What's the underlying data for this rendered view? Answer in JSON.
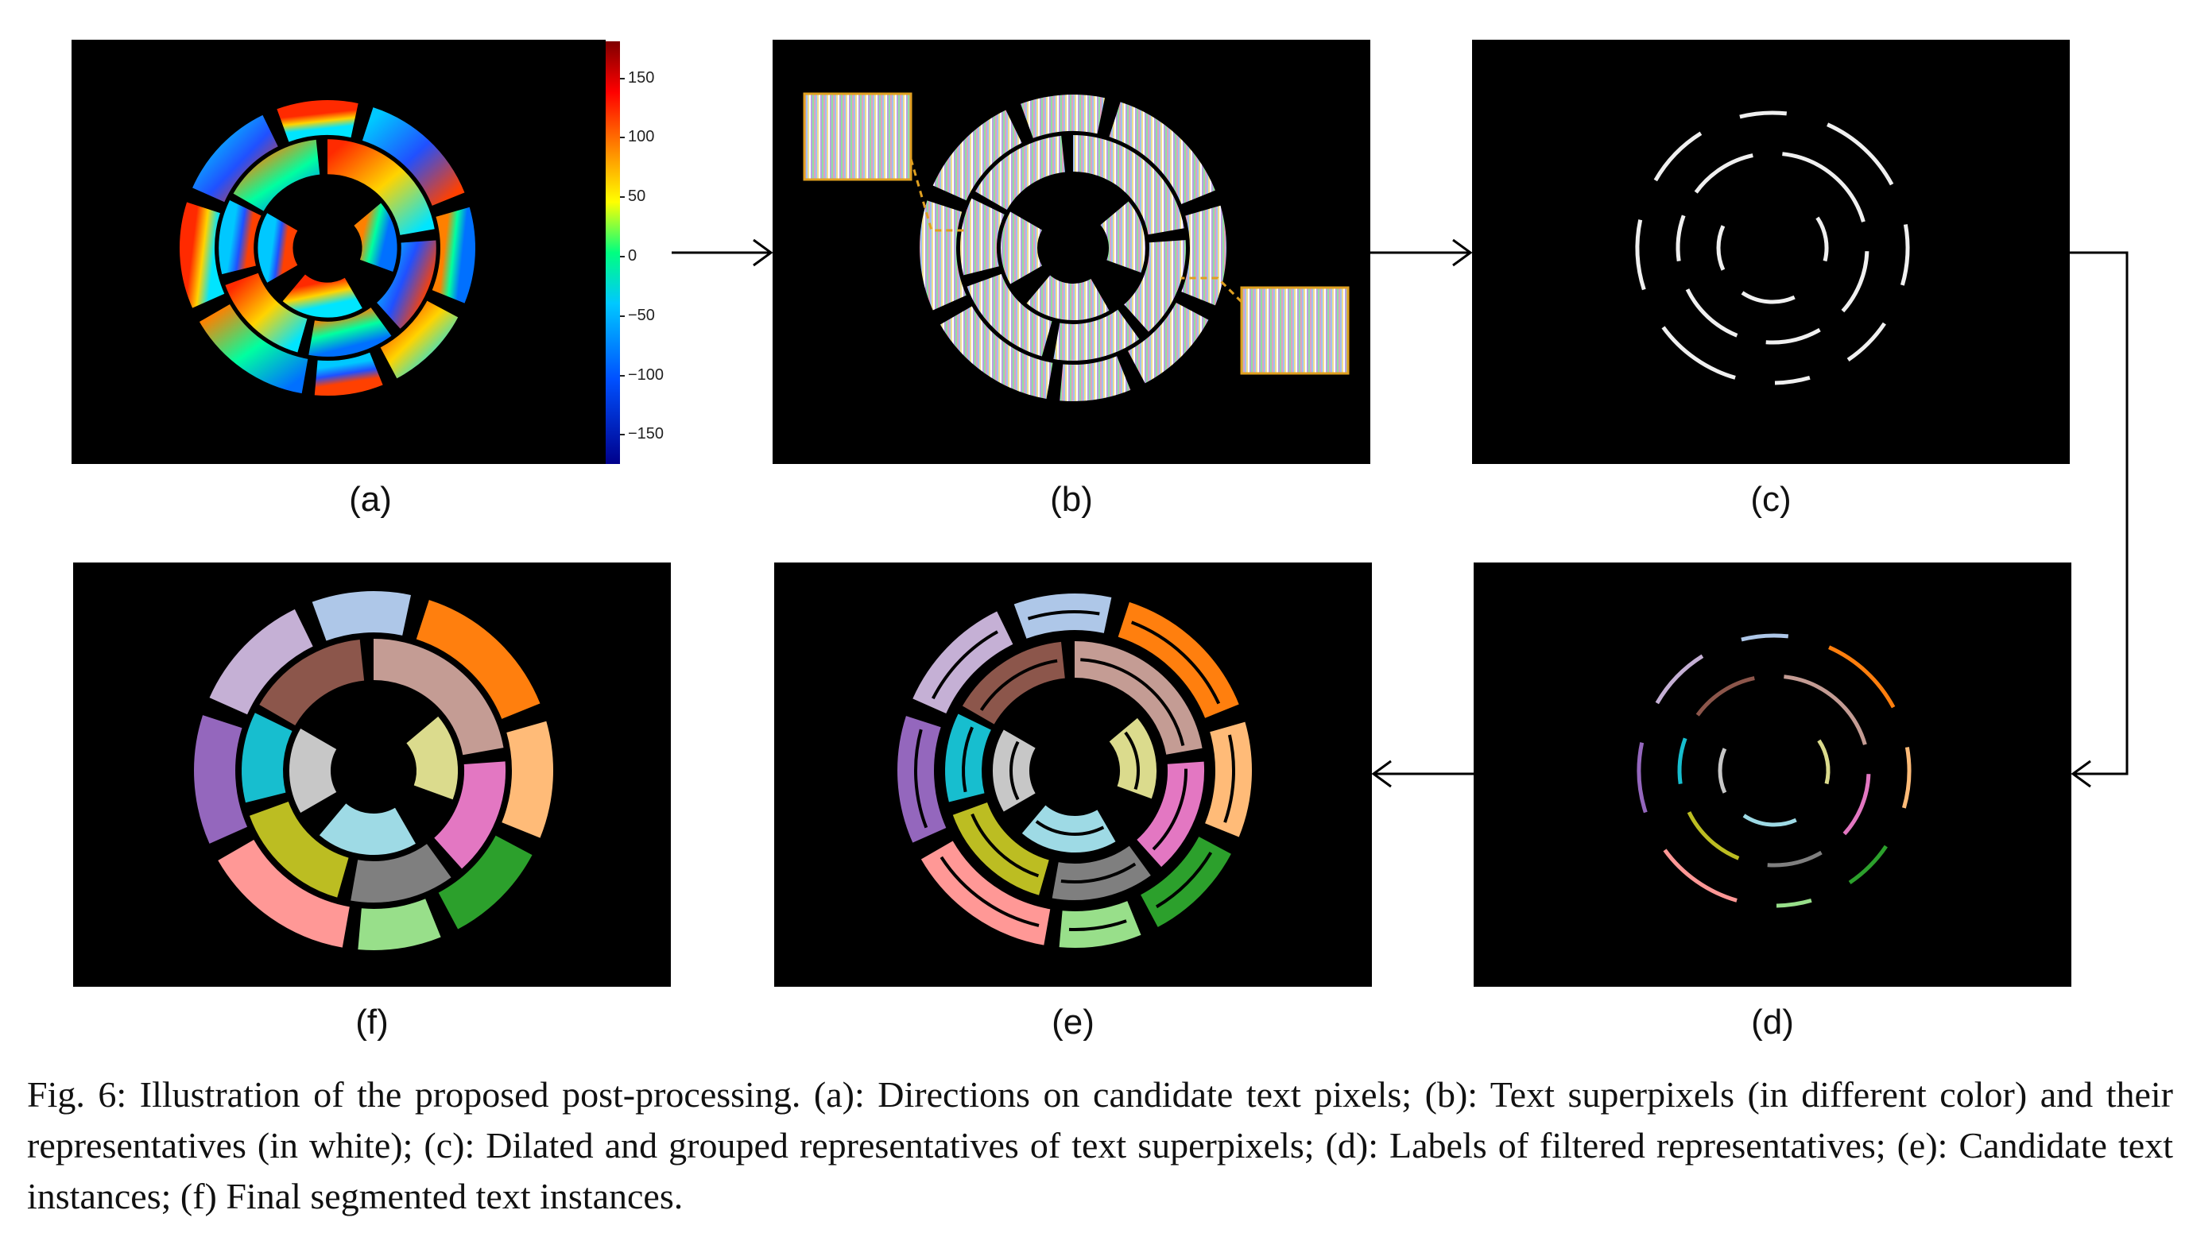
{
  "figure": {
    "panels": [
      {
        "id": "a",
        "label": "(a)",
        "description_key": "direction-map"
      },
      {
        "id": "b",
        "label": "(b)",
        "description_key": "superpixels"
      },
      {
        "id": "c",
        "label": "(c)",
        "description_key": "dilated-representatives"
      },
      {
        "id": "d",
        "label": "(d)",
        "description_key": "labeled-representatives"
      },
      {
        "id": "e",
        "label": "(e)",
        "description_key": "candidate-instances"
      },
      {
        "id": "f",
        "label": "(f)",
        "description_key": "final-instances"
      }
    ],
    "colorbar": {
      "ticks": [
        "150",
        "100",
        "50",
        "0",
        "−50",
        "−100",
        "−150"
      ],
      "colors": [
        "#7f0000",
        "#ff0000",
        "#ff8c00",
        "#ffff00",
        "#00ff80",
        "#00c8ff",
        "#0050ff",
        "#00008b"
      ]
    },
    "caption": "Fig. 6: Illustration of the proposed post-processing. (a): Directions on candidate text pixels; (b): Text superpixels (in different color) and their representatives (in white); (c): Dilated and grouped representatives of text superpixels; (d): Labels of filtered representatives; (e): Candidate text instances; (f) Final segmented text instances.",
    "instance_colors": [
      "#aec7e8",
      "#ff7f0e",
      "#ffbb78",
      "#2ca02c",
      "#98df8a",
      "#ff9896",
      "#9467bd",
      "#c5b0d5",
      "#8c564b",
      "#c49c94",
      "#e377c2",
      "#7f7f7f",
      "#bcbd22",
      "#17becf",
      "#dbdb8d",
      "#9edae5",
      "#c7c7c7"
    ]
  }
}
